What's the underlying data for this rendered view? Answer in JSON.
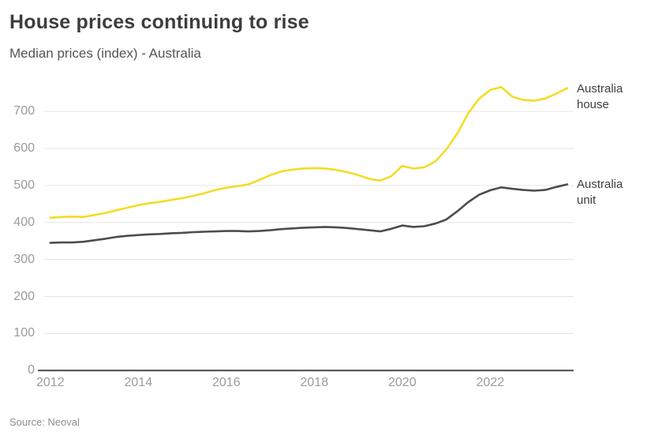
{
  "header": {
    "title": "House prices continuing to rise",
    "subtitle": "Median prices (index) - Australia"
  },
  "footer": {
    "source": "Source: Neoval"
  },
  "colors": {
    "house_line": "#F3DC26",
    "unit_line": "#4D4D4D",
    "gridline": "#E5E5E5",
    "axis_line": "#4A4A4A",
    "tick_text": "#9B9B9B",
    "title_text": "#3D3D3D"
  },
  "chart_data": {
    "type": "line",
    "title": "House prices continuing to rise",
    "subtitle": "Median prices (index) - Australia",
    "source": "Source: Neoval",
    "grid": true,
    "legend_position": "right of line ends",
    "xlabel": "",
    "ylabel": "",
    "ylim": [
      0,
      775
    ],
    "xlim": [
      2011.85,
      2023.9
    ],
    "yticks": [
      0,
      100,
      200,
      300,
      400,
      500,
      600,
      700
    ],
    "xticks": [
      2012,
      2014,
      2016,
      2018,
      2020,
      2022
    ],
    "x": [
      2012.0,
      2012.25,
      2012.5,
      2012.75,
      2013.0,
      2013.25,
      2013.5,
      2013.75,
      2014.0,
      2014.25,
      2014.5,
      2014.75,
      2015.0,
      2015.25,
      2015.5,
      2015.75,
      2016.0,
      2016.25,
      2016.5,
      2016.75,
      2017.0,
      2017.25,
      2017.5,
      2017.75,
      2018.0,
      2018.25,
      2018.5,
      2018.75,
      2019.0,
      2019.25,
      2019.5,
      2019.75,
      2020.0,
      2020.25,
      2020.5,
      2020.75,
      2021.0,
      2021.25,
      2021.5,
      2021.75,
      2022.0,
      2022.25,
      2022.5,
      2022.75,
      2023.0,
      2023.25,
      2023.5,
      2023.75
    ],
    "series": [
      {
        "name": "Australia house",
        "color": "#F3DC26",
        "values": [
          413,
          415,
          416,
          415,
          420,
          426,
          433,
          440,
          447,
          452,
          456,
          461,
          466,
          472,
          479,
          488,
          494,
          498,
          503,
          515,
          528,
          538,
          543,
          546,
          547,
          546,
          542,
          536,
          528,
          518,
          513,
          525,
          553,
          546,
          549,
          565,
          597,
          640,
          695,
          735,
          758,
          766,
          740,
          731,
          729,
          735,
          748,
          763
        ]
      },
      {
        "name": "Australia unit",
        "color": "#4D4D4D",
        "values": [
          345,
          346,
          346,
          348,
          352,
          356,
          361,
          364,
          366,
          368,
          369,
          371,
          372,
          374,
          375,
          376,
          377,
          377,
          376,
          377,
          379,
          382,
          384,
          386,
          387,
          388,
          387,
          385,
          382,
          379,
          376,
          383,
          392,
          388,
          390,
          397,
          408,
          430,
          455,
          475,
          487,
          495,
          491,
          488,
          486,
          488,
          496,
          503
        ]
      }
    ]
  }
}
